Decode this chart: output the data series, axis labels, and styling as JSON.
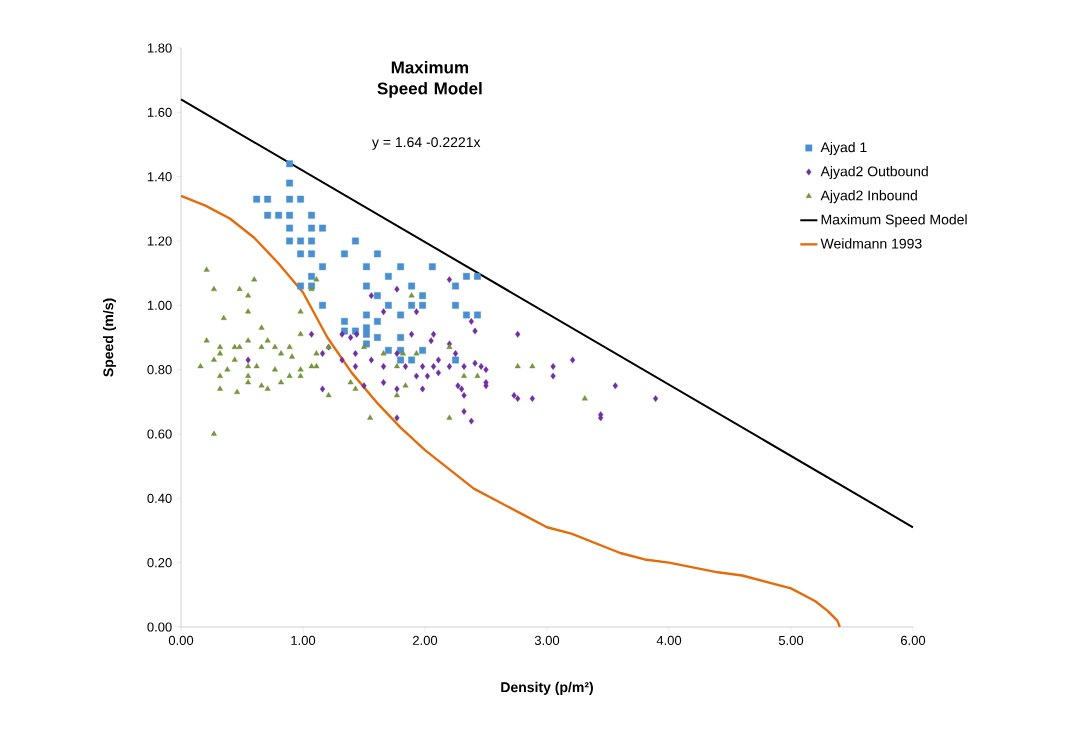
{
  "chart_data": {
    "type": "scatter",
    "title": "Maximum Speed Model",
    "xlabel": "Density (p/m²)",
    "ylabel": "Speed (m/s)",
    "annotations": [
      "y = 1.64 -0.2221x"
    ],
    "xlim": [
      0,
      6
    ],
    "ylim": [
      0,
      1.8
    ],
    "xticks": [
      {
        "value": 0,
        "label": "0.00"
      },
      {
        "value": 1,
        "label": "1.00"
      },
      {
        "value": 2,
        "label": "2.00"
      },
      {
        "value": 3,
        "label": "3.00"
      },
      {
        "value": 4,
        "label": "4.00"
      },
      {
        "value": 5,
        "label": "5.00"
      },
      {
        "value": 6,
        "label": "6.00"
      }
    ],
    "yticks": [
      {
        "value": 0,
        "label": "0.00"
      },
      {
        "value": 0.2,
        "label": "0.20"
      },
      {
        "value": 0.4,
        "label": "0.40"
      },
      {
        "value": 0.6,
        "label": "0.60"
      },
      {
        "value": 0.8,
        "label": "0.80"
      },
      {
        "value": 1.0,
        "label": "1.00"
      },
      {
        "value": 1.2,
        "label": "1.20"
      },
      {
        "value": 1.4,
        "label": "1.40"
      },
      {
        "value": 1.6,
        "label": "1.60"
      },
      {
        "value": 1.8,
        "label": "1.80"
      }
    ],
    "grid": false,
    "legend": "top right",
    "series": [
      {
        "name": "Ajyad 1",
        "marker": "square",
        "color": "#4a8fd0",
        "x": [
          0.89,
          0.89,
          0.62,
          0.71,
          0.89,
          0.98,
          0.71,
          0.8,
          0.89,
          1.07,
          0.89,
          1.07,
          1.16,
          0.89,
          0.98,
          1.07,
          1.43,
          0.98,
          1.07,
          1.34,
          1.61,
          1.16,
          1.52,
          1.8,
          2.06,
          1.07,
          1.7,
          2.34,
          2.43,
          0.98,
          1.07,
          1.52,
          1.89,
          2.25,
          1.16,
          1.7,
          1.89,
          1.98,
          2.25,
          1.98,
          1.61,
          1.34,
          1.52,
          1.61,
          1.8,
          2.34,
          2.43,
          1.43,
          1.52,
          1.52,
          1.34,
          1.61,
          1.8,
          1.7,
          1.8,
          1.98,
          1.8,
          1.89,
          2.25,
          1.52
        ],
        "values": [
          1.44,
          1.38,
          1.33,
          1.33,
          1.33,
          1.33,
          1.28,
          1.28,
          1.28,
          1.28,
          1.24,
          1.24,
          1.24,
          1.2,
          1.2,
          1.2,
          1.2,
          1.16,
          1.16,
          1.16,
          1.16,
          1.12,
          1.12,
          1.12,
          1.12,
          1.09,
          1.09,
          1.09,
          1.09,
          1.06,
          1.06,
          1.06,
          1.06,
          1.06,
          1.0,
          1.0,
          1.0,
          1.0,
          1.0,
          1.03,
          1.03,
          0.95,
          0.97,
          0.95,
          0.97,
          0.97,
          0.97,
          0.92,
          0.93,
          0.91,
          0.92,
          0.9,
          0.9,
          0.86,
          0.86,
          0.86,
          0.83,
          0.83,
          0.83,
          0.88
        ]
      },
      {
        "name": "Ajyad2 Outbound",
        "marker": "diamond",
        "color": "#7030a0",
        "x": [
          0.55,
          1.07,
          1.16,
          1.21,
          1.16,
          1.32,
          1.32,
          1.39,
          1.44,
          1.43,
          1.43,
          1.5,
          1.56,
          1.56,
          1.66,
          1.66,
          1.66,
          1.77,
          1.77,
          1.77,
          1.77,
          1.84,
          1.89,
          1.93,
          1.93,
          1.98,
          1.98,
          2.02,
          2.05,
          2.07,
          2.07,
          2.11,
          2.11,
          2.2,
          2.2,
          2.2,
          2.25,
          2.27,
          2.32,
          2.3,
          2.32,
          2.32,
          2.38,
          2.38,
          2.41,
          2.41,
          2.46,
          2.5,
          2.5,
          2.5,
          2.73,
          2.76,
          2.76,
          2.88,
          3.05,
          3.05,
          3.21,
          3.44,
          3.44,
          3.56,
          3.89
        ],
        "values": [
          0.83,
          0.91,
          0.74,
          0.87,
          0.85,
          0.83,
          0.91,
          0.9,
          0.91,
          0.81,
          0.85,
          0.75,
          1.03,
          0.83,
          0.81,
          0.76,
          0.98,
          0.65,
          1.05,
          0.85,
          0.74,
          0.81,
          0.91,
          0.98,
          0.78,
          0.81,
          0.74,
          0.78,
          0.89,
          0.81,
          0.91,
          0.83,
          0.79,
          1.08,
          0.88,
          0.81,
          0.85,
          0.75,
          0.81,
          0.74,
          0.72,
          0.67,
          0.64,
          0.95,
          0.92,
          0.82,
          0.81,
          0.8,
          0.76,
          0.75,
          0.72,
          0.91,
          0.71,
          0.71,
          0.81,
          0.78,
          0.83,
          0.66,
          0.65,
          0.75,
          0.71
        ]
      },
      {
        "name": "Ajyad2 Inbound",
        "marker": "triangle",
        "color": "#77933c",
        "x": [
          0.16,
          0.21,
          0.21,
          0.27,
          0.27,
          0.27,
          0.32,
          0.32,
          0.32,
          0.32,
          0.35,
          0.38,
          0.44,
          0.44,
          0.46,
          0.48,
          0.48,
          0.55,
          0.55,
          0.55,
          0.55,
          0.55,
          0.55,
          0.6,
          0.62,
          0.66,
          0.66,
          0.66,
          0.71,
          0.71,
          0.77,
          0.77,
          0.82,
          0.82,
          0.89,
          0.89,
          0.91,
          0.98,
          0.98,
          0.98,
          0.98,
          1.07,
          1.07,
          1.11,
          1.11,
          1.11,
          1.21,
          1.21,
          1.39,
          1.43,
          1.5,
          1.55,
          1.66,
          1.77,
          1.77,
          1.82,
          1.84,
          1.89,
          1.93,
          2.2,
          2.2,
          2.32,
          2.43,
          2.76,
          2.88,
          3.31
        ],
        "values": [
          0.81,
          1.11,
          0.89,
          1.05,
          0.6,
          0.83,
          0.87,
          0.85,
          0.78,
          0.74,
          0.96,
          0.8,
          0.87,
          0.83,
          0.73,
          1.05,
          0.87,
          1.03,
          0.98,
          0.89,
          0.81,
          0.78,
          0.76,
          1.08,
          0.81,
          0.93,
          0.87,
          0.75,
          0.89,
          0.74,
          0.87,
          0.8,
          0.85,
          0.76,
          0.87,
          0.78,
          0.84,
          0.98,
          0.91,
          0.8,
          0.78,
          1.05,
          0.81,
          1.08,
          0.85,
          0.81,
          0.87,
          0.72,
          0.76,
          0.74,
          0.87,
          0.65,
          0.85,
          0.72,
          0.81,
          0.85,
          0.75,
          1.03,
          0.85,
          0.65,
          0.87,
          0.78,
          0.78,
          0.81,
          0.81,
          0.71
        ]
      },
      {
        "name": "Maximum Speed Model",
        "type": "line",
        "marker": "none",
        "color": "#000000",
        "x": [
          0,
          6
        ],
        "values": [
          1.64,
          0.31
        ]
      },
      {
        "name": "Weidmann 1993",
        "type": "line",
        "marker": "none",
        "color": "#e46c0a",
        "x": [
          0,
          0.2,
          0.4,
          0.6,
          0.8,
          1.0,
          1.2,
          1.4,
          1.6,
          1.8,
          2.0,
          2.2,
          2.4,
          2.6,
          2.8,
          3.0,
          3.2,
          3.4,
          3.6,
          3.8,
          4.0,
          4.2,
          4.4,
          4.6,
          4.8,
          5.0,
          5.2,
          5.3,
          5.38,
          5.4
        ],
        "values": [
          1.34,
          1.31,
          1.27,
          1.21,
          1.13,
          1.04,
          0.9,
          0.79,
          0.7,
          0.62,
          0.55,
          0.49,
          0.43,
          0.39,
          0.35,
          0.31,
          0.29,
          0.26,
          0.23,
          0.21,
          0.2,
          0.185,
          0.17,
          0.16,
          0.14,
          0.12,
          0.08,
          0.05,
          0.02,
          0.0
        ]
      }
    ]
  }
}
